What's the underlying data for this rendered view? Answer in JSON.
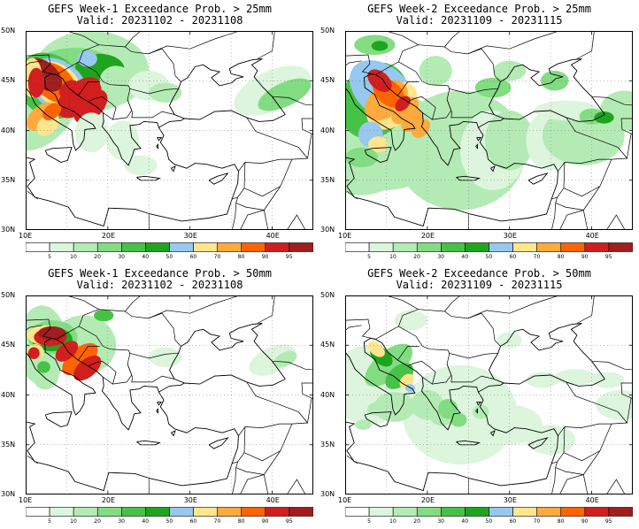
{
  "palette": [
    "#ffffff",
    "#dcf5dc",
    "#b4ebb4",
    "#82dc82",
    "#46c346",
    "#1ea51e",
    "#96c8f0",
    "#ffe68c",
    "#ffaa3c",
    "#ff6400",
    "#d21e1e",
    "#a01e1e"
  ],
  "colorbar_labels": [
    "5",
    "10",
    "20",
    "30",
    "40",
    "50",
    "60",
    "70",
    "80",
    "90",
    "95"
  ],
  "lat_labels": [
    "50N",
    "45N",
    "40N",
    "35N",
    "30N"
  ],
  "lon_labels": [
    "10E",
    "20E",
    "30E",
    "40E"
  ],
  "panels": [
    {
      "title1": "GEFS Week-1 Exceedance Prob. > 25mm",
      "title2": "Valid: 20231102 - 20231108",
      "week": 1,
      "threshold_mm": 25
    },
    {
      "title1": "GEFS Week-2 Exceedance Prob. > 25mm",
      "title2": "Valid: 20231109 - 20231115",
      "week": 2,
      "threshold_mm": 25
    },
    {
      "title1": "GEFS Week-1 Exceedance Prob. > 50mm",
      "title2": "Valid: 20231102 - 20231108",
      "week": 1,
      "threshold_mm": 50
    },
    {
      "title1": "GEFS Week-2 Exceedance Prob. > 50mm",
      "title2": "Valid: 20231109 - 20231115",
      "week": 2,
      "threshold_mm": 50
    }
  ]
}
